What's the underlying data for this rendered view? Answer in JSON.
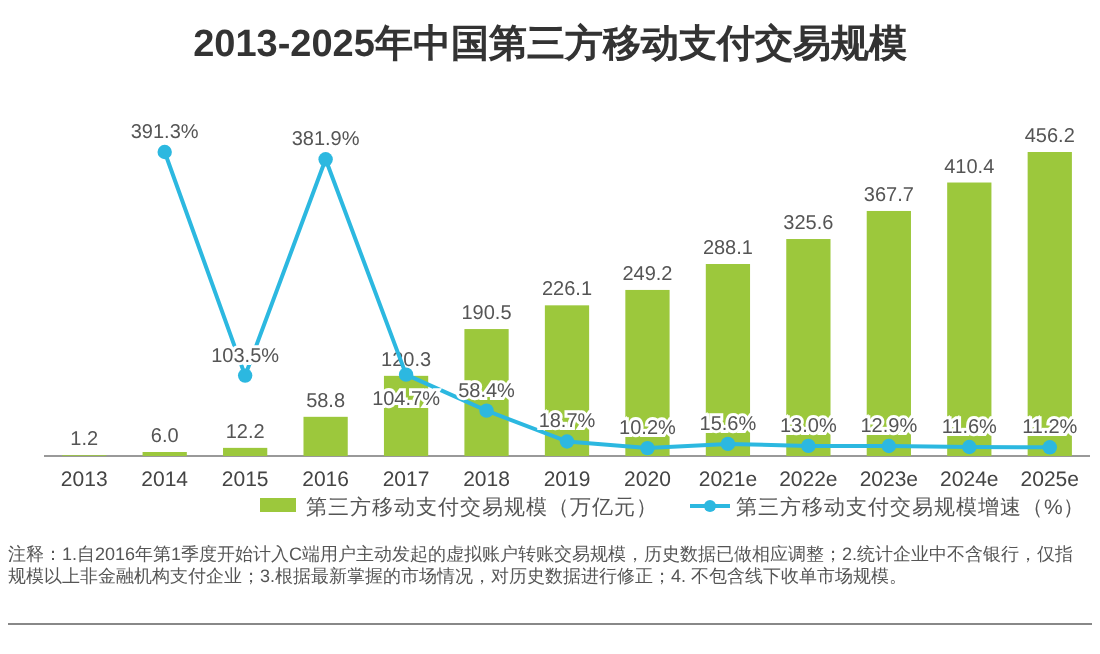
{
  "chart_data": {
    "type": "bar",
    "title": "2013-2025年中国第三方移动支付交易规模",
    "categories": [
      "2013",
      "2014",
      "2015",
      "2016",
      "2017",
      "2018",
      "2019",
      "2020",
      "2021e",
      "2022e",
      "2023e",
      "2024e",
      "2025e"
    ],
    "series": [
      {
        "name": "第三方移动支付交易规模（万亿元）",
        "type": "bar",
        "color": "#9cc83c",
        "values": [
          1.2,
          6.0,
          12.2,
          58.8,
          120.3,
          190.5,
          226.1,
          249.2,
          288.1,
          325.6,
          367.7,
          410.4,
          456.2
        ],
        "value_labels": [
          "1.2",
          "6.0",
          "12.2",
          "58.8",
          "120.3",
          "190.5",
          "226.1",
          "249.2",
          "288.1",
          "325.6",
          "367.7",
          "410.4",
          "456.2"
        ]
      },
      {
        "name": "第三方移动支付交易规模增速（%）",
        "type": "line",
        "axis": "y2",
        "color": "#2cb8e0",
        "marker": "circle",
        "values": [
          null,
          391.3,
          103.5,
          381.9,
          104.7,
          58.4,
          18.7,
          10.2,
          15.6,
          13.0,
          12.9,
          11.6,
          11.2
        ],
        "value_labels": [
          null,
          "391.3%",
          "103.5%",
          "381.9%",
          "104.7%",
          "58.4%",
          "18.7%",
          "10.2%",
          "15.6%",
          "13.0%",
          "12.9%",
          "11.6%",
          "11.2%"
        ]
      }
    ],
    "legend": "bottom",
    "annotations": [
      "注释：1.自2016年第1季度开始计入C端用户主动发起的虚拟账户转账交易规模，历史数据已做相应调整；2.统计企业中不含银行，仅指规模以上非金融机构支付企业；3.根据最新掌握的市场情况，对历史数据进行修正；4. 不包含线下收单市场规模。"
    ]
  }
}
